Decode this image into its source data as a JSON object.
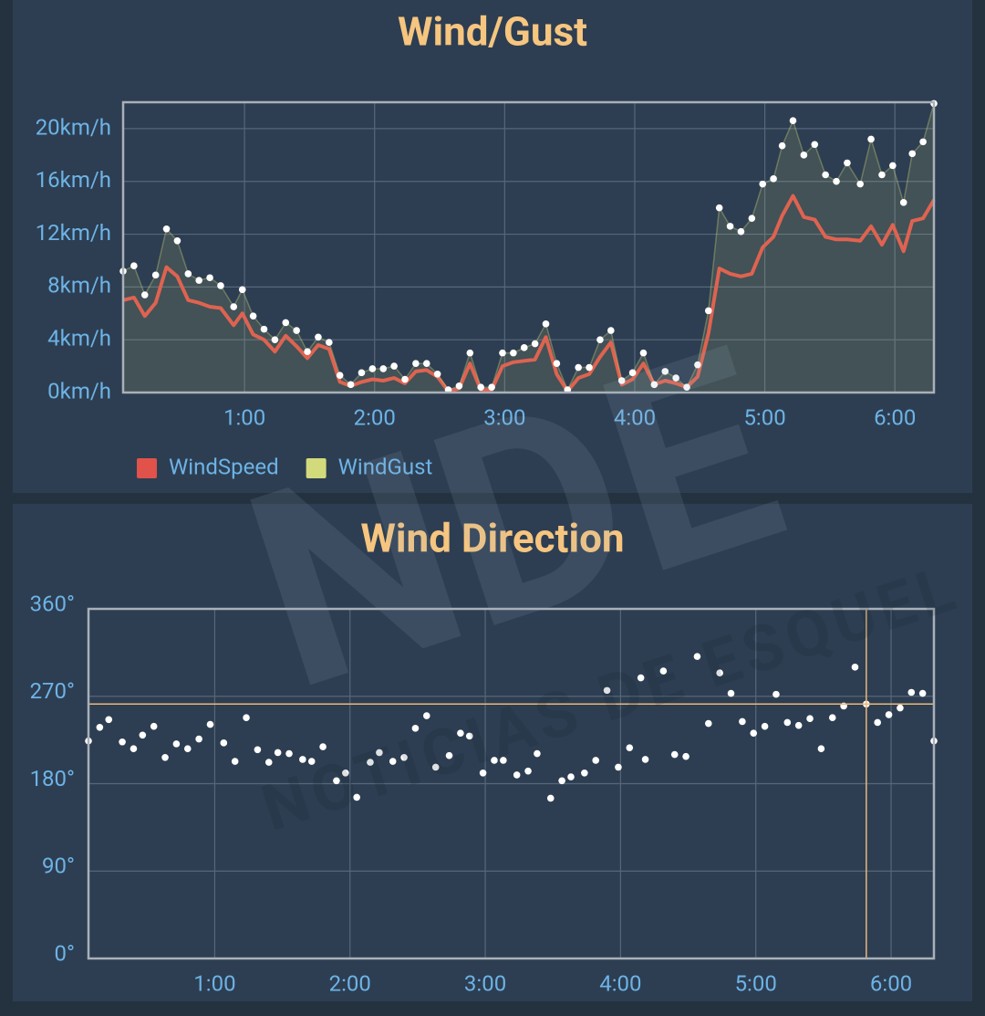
{
  "chart_data": [
    {
      "type": "line",
      "title": "Wind/Gust",
      "x": [
        4,
        9,
        14,
        19,
        24,
        29,
        34,
        39,
        44,
        49,
        55,
        59,
        64,
        69,
        74,
        79,
        84,
        89,
        94,
        99,
        104,
        109,
        114,
        119,
        124,
        129,
        134,
        139,
        144,
        149,
        154,
        159,
        164,
        169,
        174,
        179,
        184,
        189,
        194,
        199,
        204,
        209,
        214,
        219,
        224,
        229,
        234,
        239,
        244,
        249,
        254,
        259,
        264,
        269,
        274,
        279,
        284,
        289,
        294,
        299,
        304,
        308,
        313,
        318,
        323,
        328,
        333,
        338,
        344,
        349,
        354,
        359,
        364,
        368,
        373,
        378
      ],
      "xlim": [
        4,
        378
      ],
      "xticks": [
        {
          "value": 60,
          "label": "1:00"
        },
        {
          "value": 120,
          "label": "2:00"
        },
        {
          "value": 180,
          "label": "3:00"
        },
        {
          "value": 240,
          "label": "4:00"
        },
        {
          "value": 300,
          "label": "5:00"
        },
        {
          "value": 360,
          "label": "6:00"
        }
      ],
      "ylim": [
        0,
        22
      ],
      "yticks": [
        {
          "value": 0,
          "label": "0km/h"
        },
        {
          "value": 4,
          "label": "4km/h"
        },
        {
          "value": 8,
          "label": "8km/h"
        },
        {
          "value": 12,
          "label": "12km/h"
        },
        {
          "value": 16,
          "label": "16km/h"
        },
        {
          "value": 20,
          "label": "20km/h"
        }
      ],
      "grid": true,
      "series": [
        {
          "name": "WindSpeed",
          "color": "#e0524a",
          "values": [
            7.0,
            7.2,
            5.8,
            6.8,
            9.5,
            8.8,
            7.0,
            6.8,
            6.5,
            6.4,
            5.1,
            6.0,
            4.4,
            4.0,
            3.1,
            4.3,
            3.5,
            2.6,
            3.6,
            3.3,
            0.8,
            0.5,
            0.8,
            1.0,
            0.9,
            1.1,
            0.7,
            1.6,
            1.7,
            1.2,
            0.1,
            0.3,
            2.2,
            0.2,
            0.2,
            2.0,
            2.3,
            2.4,
            2.5,
            4.2,
            1.4,
            0.1,
            1.1,
            1.4,
            2.7,
            3.8,
            0.6,
            1.0,
            2.2,
            0.6,
            0.9,
            0.7,
            0.4,
            1.2,
            4.5,
            9.4,
            9.0,
            8.8,
            9.0,
            11.0,
            11.8,
            13.4,
            14.9,
            13.3,
            13.1,
            11.8,
            11.6,
            11.6,
            11.5,
            12.6,
            11.2,
            12.7,
            10.7,
            13.0,
            13.2,
            14.6
          ]
        },
        {
          "name": "WindGust",
          "color": "#d3da7b",
          "fill": true,
          "marker_color": "#ffffff",
          "values": [
            9.2,
            9.6,
            7.4,
            8.9,
            12.4,
            11.5,
            9.0,
            8.5,
            8.7,
            8.1,
            6.5,
            7.8,
            5.8,
            4.8,
            4.0,
            5.3,
            4.7,
            3.1,
            4.2,
            3.8,
            1.3,
            0.6,
            1.5,
            1.8,
            1.8,
            2.0,
            1.0,
            2.2,
            2.2,
            1.4,
            0.2,
            0.5,
            3.0,
            0.4,
            0.4,
            3.0,
            3.0,
            3.4,
            3.7,
            5.2,
            2.2,
            0.2,
            1.9,
            1.9,
            4.0,
            4.7,
            0.9,
            1.5,
            3.0,
            0.6,
            1.6,
            1.1,
            0.4,
            2.1,
            6.2,
            14.0,
            12.6,
            12.2,
            13.2,
            15.8,
            16.2,
            18.7,
            20.6,
            18.0,
            18.8,
            16.5,
            16.0,
            17.4,
            15.8,
            19.2,
            16.5,
            17.2,
            14.4,
            18.1,
            19.0,
            21.9
          ]
        }
      ]
    },
    {
      "type": "scatter",
      "title": "Wind Direction",
      "x": [
        4,
        9,
        13,
        19,
        24,
        28,
        33,
        38,
        43,
        48,
        53,
        58,
        64,
        69,
        74,
        79,
        84,
        88,
        93,
        99,
        103,
        108,
        114,
        118,
        123,
        129,
        133,
        139,
        144,
        149,
        154,
        158,
        164,
        169,
        173,
        179,
        184,
        188,
        194,
        199,
        203,
        209,
        214,
        218,
        224,
        229,
        234,
        239,
        244,
        249,
        251,
        259,
        264,
        269,
        274,
        279,
        284,
        289,
        294,
        299,
        304,
        309,
        314,
        319,
        324,
        329,
        334,
        339,
        344,
        349,
        354,
        359,
        364,
        369,
        374,
        379
      ],
      "values": [
        224,
        238,
        246,
        223,
        216,
        230,
        239,
        207,
        221,
        216,
        226,
        241,
        222,
        203,
        248,
        215,
        202,
        212,
        211,
        205,
        203,
        218,
        183,
        191,
        166,
        202,
        212,
        203,
        207,
        237,
        250,
        197,
        209,
        232,
        229,
        191,
        204,
        204,
        189,
        193,
        211,
        165,
        183,
        187,
        191,
        204,
        276,
        197,
        217,
        289,
        205,
        296,
        210,
        208,
        311,
        242,
        294,
        273,
        244,
        232,
        239,
        272,
        243,
        240,
        247,
        216,
        248,
        260,
        300,
        262,
        243,
        251,
        258,
        274,
        273,
        224
      ],
      "color": "#ffffff",
      "xlim": [
        4,
        379
      ],
      "xticks": [
        {
          "value": 60,
          "label": "1:00"
        },
        {
          "value": 120,
          "label": "2:00"
        },
        {
          "value": 180,
          "label": "3:00"
        },
        {
          "value": 240,
          "label": "4:00"
        },
        {
          "value": 300,
          "label": "5:00"
        },
        {
          "value": 360,
          "label": "6:00"
        }
      ],
      "ylim": [
        0,
        360
      ],
      "yticks": [
        {
          "value": 0,
          "label": "0°"
        },
        {
          "value": 90,
          "label": "90°"
        },
        {
          "value": 180,
          "label": "180°"
        },
        {
          "value": 270,
          "label": "270°"
        },
        {
          "value": 360,
          "label": "360°"
        }
      ],
      "grid": true,
      "crosshair": {
        "x": 349,
        "y": 262,
        "color": "#e8b87a"
      }
    }
  ],
  "watermark": {
    "logo": "NDE",
    "text": "NOTICIAS DE ESQUEL"
  }
}
